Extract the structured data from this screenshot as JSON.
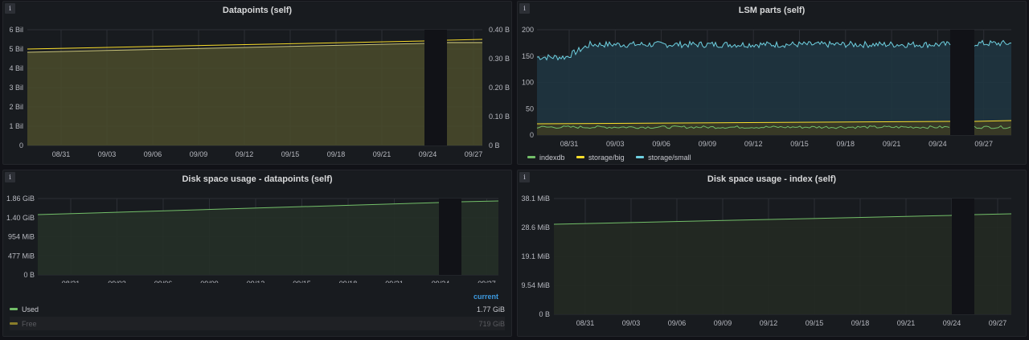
{
  "colors": {
    "green": "#73bf69",
    "yellow": "#fade2a",
    "cyan": "#5794f2",
    "teal": "#6ed0e0",
    "grid": "#2c2f35",
    "muted": "#6e6f74"
  },
  "x_dates": [
    "08/31",
    "09/03",
    "09/06",
    "09/09",
    "09/12",
    "09/15",
    "09/18",
    "09/21",
    "09/24",
    "09/27"
  ],
  "panels": {
    "datapoints": {
      "title": "Datapoints (self)",
      "y_left_ticks": [
        "0",
        "1 Bil",
        "2 Bil",
        "3 Bil",
        "4 Bil",
        "5 Bil",
        "6 Bil"
      ],
      "y_right_ticks": [
        "0 B",
        "0.10 B",
        "0.20 B",
        "0.30 B",
        "0.40 B"
      ]
    },
    "lsm": {
      "title": "LSM parts (self)",
      "y_ticks": [
        "0",
        "50",
        "100",
        "150",
        "200"
      ],
      "legend": [
        {
          "label": "indexdb",
          "color": "#73bf69"
        },
        {
          "label": "storage/big",
          "color": "#fade2a"
        },
        {
          "label": "storage/small",
          "color": "#6ed0e0"
        }
      ]
    },
    "disk_datapoints": {
      "title": "Disk space usage - datapoints (self)",
      "y_ticks": [
        "0 B",
        "477 MiB",
        "954 MiB",
        "1.40 GiB",
        "1.86 GiB"
      ],
      "legend_header": "current",
      "legend_rows": [
        {
          "label": "Used",
          "value": "1.77 GiB",
          "color": "#73bf69",
          "dim": false
        },
        {
          "label": "Free",
          "value": "719 GiB",
          "color": "#fade2a",
          "dim": true
        }
      ]
    },
    "disk_index": {
      "title": "Disk space usage - index (self)",
      "y_ticks": [
        "0 B",
        "9.54 MiB",
        "19.1 MiB",
        "28.6 MiB",
        "38.1 MiB"
      ]
    }
  },
  "chart_data": [
    {
      "type": "area",
      "title": "Datapoints (self)",
      "x": [
        "08/29",
        "09/24",
        "09/25",
        "09/29"
      ],
      "series": [
        {
          "values": [
            5.0,
            5.35,
            null,
            5.45
          ]
        },
        {
          "values": [
            4.9,
            5.25,
            null,
            5.35
          ]
        }
      ],
      "ylim": [
        0,
        6
      ],
      "y2lim": [
        0,
        0.4
      ]
    },
    {
      "type": "line",
      "title": "LSM parts (self)",
      "x": [
        "08/29",
        "08/31",
        "09/01",
        "09/24",
        "09/25",
        "09/29"
      ],
      "categories": [
        "indexdb",
        "storage/big",
        "storage/small"
      ],
      "series": [
        {
          "name": "indexdb",
          "values": [
            15,
            15,
            15,
            15,
            null,
            15
          ]
        },
        {
          "name": "storage/big",
          "values": [
            20,
            22,
            23,
            25,
            null,
            26
          ]
        },
        {
          "name": "storage/small",
          "values": [
            148,
            148,
            172,
            168,
            null,
            178
          ]
        }
      ],
      "ylim": [
        0,
        200
      ]
    },
    {
      "type": "area",
      "title": "Disk space usage - datapoints (self)",
      "x": [
        "08/29",
        "09/24",
        "09/25",
        "09/29"
      ],
      "series": [
        {
          "name": "Used",
          "values": [
            1.44,
            1.72,
            null,
            1.77
          ]
        }
      ],
      "ylim": [
        0,
        1.86
      ]
    },
    {
      "type": "area",
      "title": "Disk space usage - index (self)",
      "x": [
        "08/29",
        "09/24",
        "09/25",
        "09/29"
      ],
      "series": [
        {
          "values": [
            29.5,
            32.6,
            null,
            33.0
          ]
        }
      ],
      "ylim": [
        0,
        38.1
      ]
    }
  ]
}
